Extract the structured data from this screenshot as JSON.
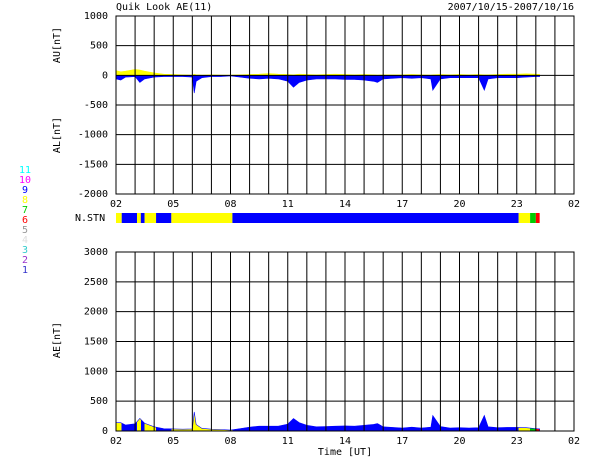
{
  "chart_data": [
    {
      "type": "area",
      "title": "Quik Look AE(11)",
      "subtitle": "2007/10/15-2007/10/16",
      "ylabels": [
        "AU[nT]",
        "AL[nT]"
      ],
      "xlim": [
        2,
        26
      ],
      "xticks": [
        {
          "value": 2,
          "label": "02"
        },
        {
          "value": 5,
          "label": "05"
        },
        {
          "value": 8,
          "label": "08"
        },
        11,
        14,
        17,
        20,
        23,
        {
          "value": 26,
          "label": "02"
        }
      ],
      "xgrid": [
        2,
        3,
        4,
        5,
        6,
        7,
        8,
        9,
        10,
        11,
        12,
        13,
        14,
        15,
        16,
        17,
        18,
        19,
        20,
        21,
        22,
        23,
        24,
        25,
        26
      ],
      "ylim": [
        -2000,
        1000
      ],
      "yticks": [
        -2000,
        -1500,
        -1000,
        -500,
        0,
        500,
        1000
      ],
      "x": [
        2,
        2.25,
        2.5,
        3,
        3.25,
        3.5,
        4,
        4.5,
        5,
        5.5,
        6,
        6.1,
        6.2,
        6.5,
        7,
        7.5,
        8,
        8.5,
        9,
        9.5,
        10,
        10.5,
        11,
        11.3,
        11.6,
        12,
        12.5,
        13,
        13.5,
        14,
        14.5,
        15,
        15.5,
        15.7,
        16,
        16.5,
        17,
        17.5,
        18,
        18.5,
        18.6,
        19,
        19.5,
        20,
        20.5,
        21,
        21.3,
        21.5,
        22,
        22.5,
        23,
        23.5,
        24,
        24.2
      ],
      "series": [
        {
          "name": "AU",
          "color": "#ffff00",
          "values": [
            80,
            60,
            70,
            100,
            90,
            70,
            40,
            20,
            15,
            10,
            5,
            20,
            10,
            5,
            10,
            5,
            5,
            10,
            15,
            20,
            30,
            20,
            15,
            10,
            20,
            15,
            10,
            15,
            20,
            15,
            10,
            15,
            10,
            5,
            10,
            10,
            10,
            15,
            10,
            5,
            10,
            15,
            10,
            15,
            10,
            15,
            10,
            10,
            15,
            20,
            20,
            25,
            20,
            15
          ]
        },
        {
          "name": "AL",
          "color": "#0000ff",
          "values": [
            -60,
            -80,
            -30,
            -20,
            -120,
            -60,
            -30,
            -20,
            -20,
            -20,
            -30,
            -300,
            -100,
            -40,
            -20,
            -20,
            -10,
            -30,
            -50,
            -60,
            -50,
            -60,
            -100,
            -200,
            -120,
            -80,
            -60,
            -60,
            -60,
            -70,
            -70,
            -80,
            -100,
            -120,
            -60,
            -50,
            -40,
            -50,
            -40,
            -60,
            -250,
            -60,
            -40,
            -40,
            -40,
            -40,
            -250,
            -60,
            -40,
            -40,
            -40,
            -30,
            -20,
            -20
          ]
        }
      ]
    },
    {
      "type": "strip",
      "label": "N.STN",
      "xlim": [
        2,
        26
      ],
      "bins": [
        2,
        2.3,
        3.1,
        3.3,
        3.5,
        4.1,
        4.9,
        8.1,
        23.1,
        23.7,
        24.0,
        24.2
      ],
      "values": [
        8,
        9,
        8,
        9,
        8,
        9,
        8,
        9,
        8,
        7,
        6
      ],
      "levels": [
        1,
        2,
        3,
        4,
        5,
        6,
        7,
        8,
        9,
        10,
        11
      ],
      "level_colors": [
        "#3333cc",
        "#9933cc",
        "#33cccc",
        "#dddddd",
        "#999999",
        "#ff0000",
        "#00cc00",
        "#ffff00",
        "#0000ff",
        "#ff00ff",
        "#00ffff"
      ]
    },
    {
      "type": "area",
      "ylabels": [
        "AE[nT]"
      ],
      "xlabel": "Time [UT]",
      "fill_by_station_count": true,
      "xlim": [
        2,
        26
      ],
      "xticks": [
        {
          "value": 2,
          "label": "02"
        },
        {
          "value": 5,
          "label": "05"
        },
        {
          "value": 8,
          "label": "08"
        },
        11,
        14,
        17,
        20,
        23,
        {
          "value": 26,
          "label": "02"
        }
      ],
      "xgrid": [
        2,
        3,
        4,
        5,
        6,
        7,
        8,
        9,
        10,
        11,
        12,
        13,
        14,
        15,
        16,
        17,
        18,
        19,
        20,
        21,
        22,
        23,
        24,
        25,
        26
      ],
      "ylim": [
        0,
        3000
      ],
      "yticks": [
        0,
        500,
        1000,
        1500,
        2000,
        2500,
        3000
      ],
      "x": [
        2,
        2.25,
        2.5,
        3,
        3.25,
        3.5,
        4,
        4.5,
        5,
        5.5,
        6,
        6.1,
        6.2,
        6.5,
        7,
        7.5,
        8,
        8.5,
        9,
        9.5,
        10,
        10.5,
        11,
        11.3,
        11.6,
        12,
        12.5,
        13,
        13.5,
        14,
        14.5,
        15,
        15.5,
        15.7,
        16,
        16.5,
        17,
        17.5,
        18,
        18.5,
        18.6,
        19,
        19.5,
        20,
        20.5,
        21,
        21.3,
        21.5,
        22,
        22.5,
        23,
        23.5,
        24,
        24.2
      ],
      "series": [
        {
          "name": "AE",
          "color": "#0000ff",
          "values": [
            140,
            140,
            100,
            120,
            210,
            130,
            70,
            40,
            35,
            30,
            35,
            320,
            110,
            45,
            30,
            25,
            15,
            40,
            65,
            80,
            80,
            80,
            115,
            210,
            140,
            95,
            70,
            75,
            80,
            85,
            80,
            95,
            110,
            125,
            70,
            60,
            50,
            65,
            50,
            65,
            260,
            75,
            50,
            55,
            50,
            55,
            260,
            70,
            55,
            60,
            60,
            55,
            40,
            35
          ]
        }
      ]
    }
  ]
}
